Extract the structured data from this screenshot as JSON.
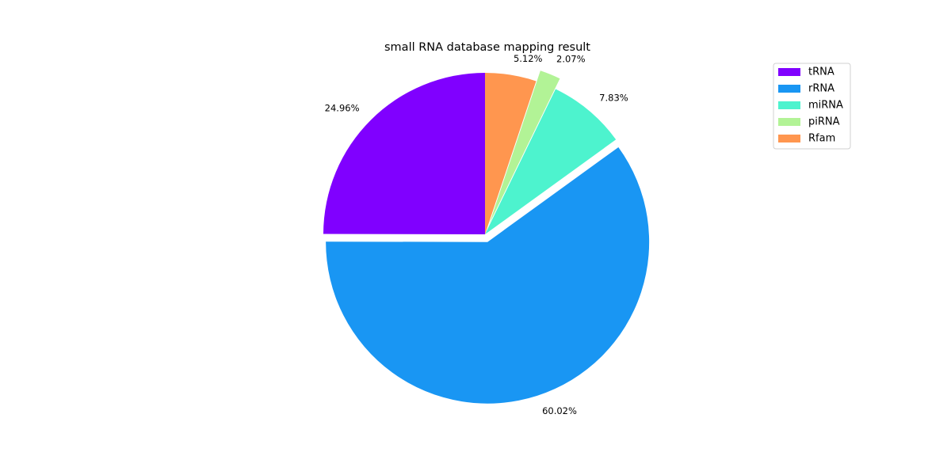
{
  "chart_data": {
    "type": "pie",
    "title": "small RNA database mapping result",
    "slices": [
      {
        "label": "tRNA",
        "value": 24.96,
        "display": "24.96%",
        "color": "#8000ff",
        "explode": 0.0
      },
      {
        "label": "rRNA",
        "value": 60.02,
        "display": "60.02%",
        "color": "#1996f3",
        "explode": 0.05
      },
      {
        "label": "miRNA",
        "value": 7.83,
        "display": "7.83%",
        "color": "#4df3ce",
        "explode": 0.0
      },
      {
        "label": "piRNA",
        "value": 2.07,
        "display": "2.07%",
        "color": "#b2f396",
        "explode": 0.07
      },
      {
        "label": "Rfam",
        "value": 5.12,
        "display": "5.12%",
        "color": "#ff964f",
        "explode": 0.0
      }
    ],
    "start_angle_deg": 90,
    "direction": "counterclockwise",
    "legend_position": "top-right"
  }
}
